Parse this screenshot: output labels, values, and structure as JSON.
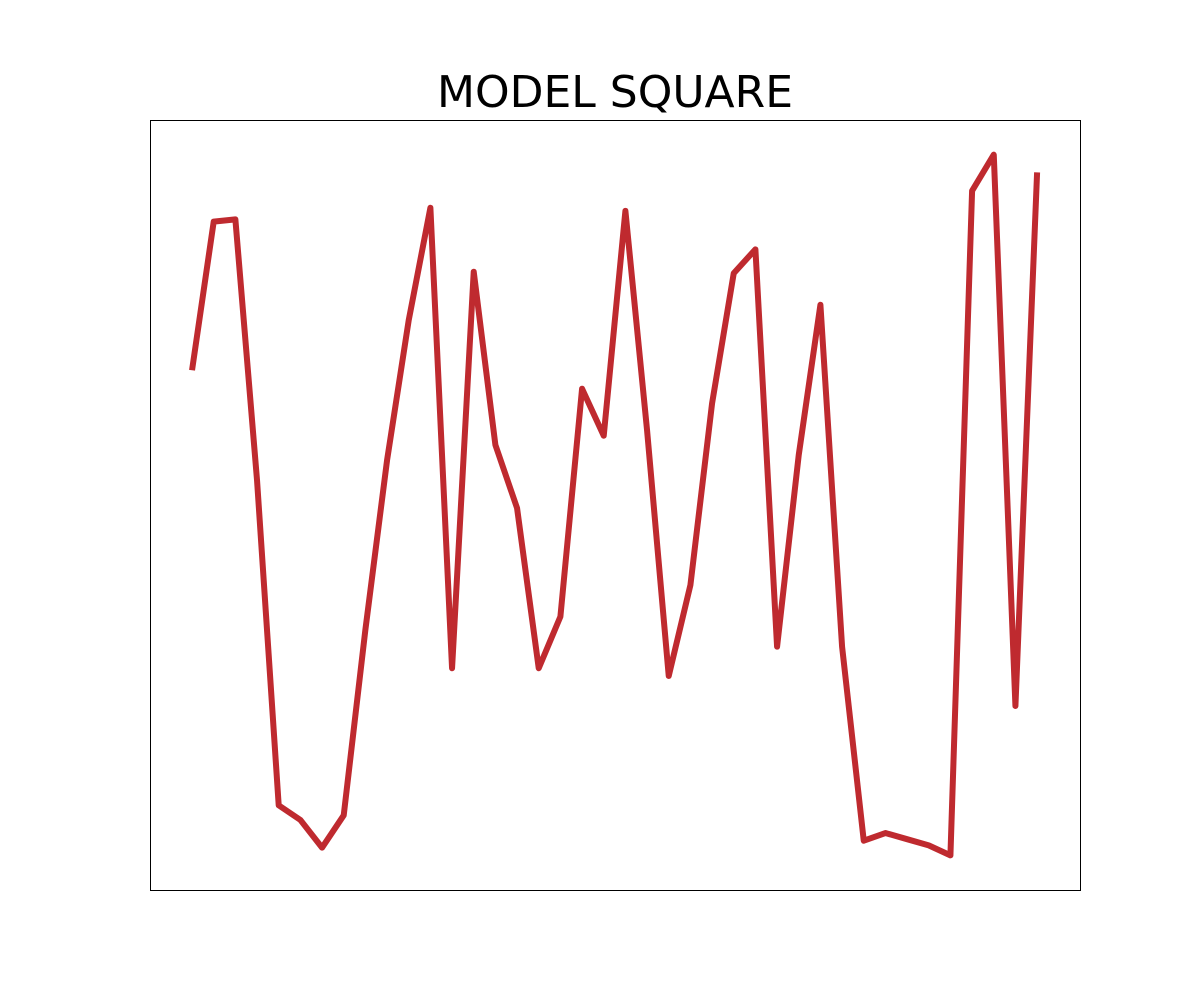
{
  "chart_data": {
    "type": "line",
    "title": "MODEL SQUARE",
    "x": [
      0,
      1,
      2,
      3,
      4,
      5,
      6,
      7,
      8,
      9,
      10,
      11,
      12,
      13,
      14,
      15,
      16,
      17,
      18,
      19,
      20,
      21,
      22,
      23,
      24,
      25,
      26,
      27,
      28,
      29,
      30,
      31,
      32,
      33,
      34,
      35,
      36,
      37,
      38,
      39
    ],
    "series": [
      {
        "color": "#bf2a2f",
        "values": [
          67.5,
          86.8,
          87.1,
          53.2,
          11.0,
          9.1,
          5.5,
          9.7,
          33.8,
          55.8,
          74.0,
          88.6,
          28.8,
          80.3,
          57.8,
          49.6,
          28.8,
          35.5,
          65.1,
          59.0,
          88.2,
          59.7,
          27.8,
          39.6,
          63.2,
          80.1,
          83.2,
          31.6,
          56.5,
          76.0,
          31.6,
          6.4,
          7.4,
          6.6,
          5.8,
          4.5,
          90.8,
          95.5,
          23.9,
          93.2
        ]
      }
    ],
    "xlim": [
      -1.94,
      40.98
    ],
    "ylim": [
      0,
      100
    ]
  }
}
